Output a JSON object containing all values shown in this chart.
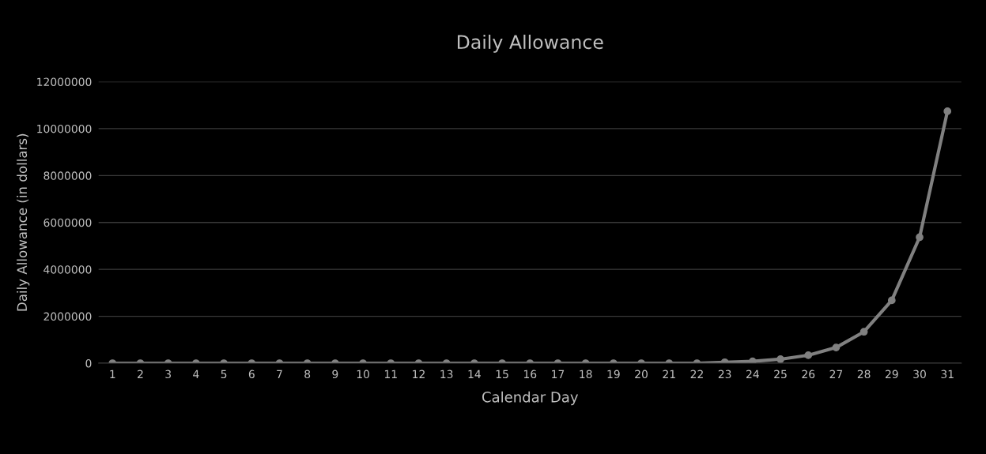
{
  "chart_data": {
    "type": "line",
    "title": "Daily Allowance",
    "xlabel": "Calendar Day",
    "ylabel": "Daily Allowance (in dollars)",
    "categories": [
      "1",
      "2",
      "3",
      "4",
      "5",
      "6",
      "7",
      "8",
      "9",
      "10",
      "11",
      "12",
      "13",
      "14",
      "15",
      "16",
      "17",
      "18",
      "19",
      "20",
      "21",
      "22",
      "23",
      "24",
      "25",
      "26",
      "27",
      "28",
      "29",
      "30",
      "31"
    ],
    "series": [
      {
        "color": "#808080",
        "values": [
          0,
          0,
          0,
          0,
          0,
          0,
          0,
          0,
          0,
          0,
          0,
          0,
          0,
          0,
          0,
          0,
          0,
          0,
          0,
          0,
          0,
          0,
          40000,
          80000,
          170000,
          340000,
          670000,
          1340000,
          2680000,
          5370000,
          10740000
        ]
      }
    ],
    "ylim": [
      0,
      12000000
    ],
    "yticks": [
      0,
      2000000,
      4000000,
      6000000,
      8000000,
      10000000,
      12000000
    ],
    "grid": "y",
    "marker": "circle",
    "line_style": "solid"
  }
}
